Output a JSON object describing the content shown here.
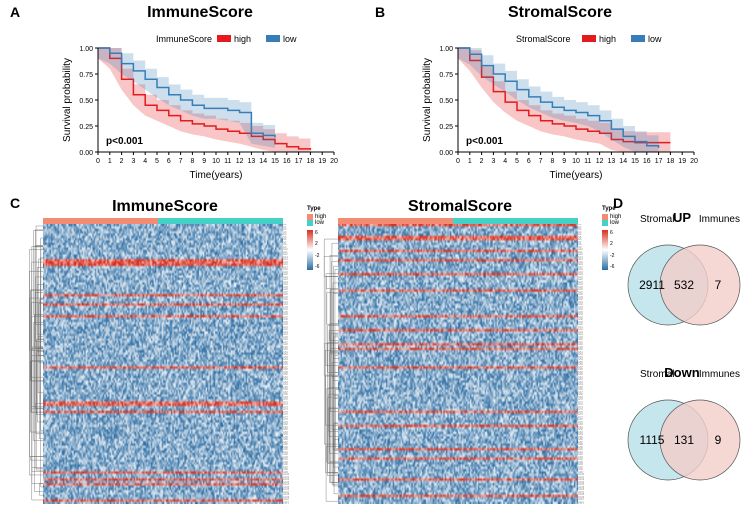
{
  "panelA": {
    "label": "A",
    "title": "ImmuneScore",
    "legend_name": "ImmuneScore",
    "groups": [
      "high",
      "low"
    ],
    "colors": {
      "high": "#e41a1c",
      "low": "#377eb8"
    },
    "fill_opacity": 0.25,
    "xlabel": "Time(years)",
    "ylabel": "Survival probability",
    "xlim": [
      0,
      20
    ],
    "xtick_step": 1,
    "ylim": [
      0,
      1
    ],
    "ytick_step": 0.25,
    "pvalue": "p<0.001",
    "curves": {
      "high": [
        [
          0,
          1.0
        ],
        [
          1,
          0.9
        ],
        [
          2,
          0.7
        ],
        [
          3,
          0.55
        ],
        [
          4,
          0.45
        ],
        [
          5,
          0.4
        ],
        [
          6,
          0.35
        ],
        [
          7,
          0.3
        ],
        [
          8,
          0.27
        ],
        [
          9,
          0.25
        ],
        [
          10,
          0.22
        ],
        [
          11,
          0.2
        ],
        [
          12,
          0.18
        ],
        [
          13,
          0.15
        ],
        [
          14,
          0.12
        ],
        [
          15,
          0.08
        ],
        [
          16,
          0.05
        ],
        [
          17,
          0.03
        ],
        [
          18,
          0.02
        ]
      ],
      "low": [
        [
          0,
          1.0
        ],
        [
          1,
          0.95
        ],
        [
          2,
          0.85
        ],
        [
          3,
          0.78
        ],
        [
          4,
          0.7
        ],
        [
          5,
          0.62
        ],
        [
          6,
          0.55
        ],
        [
          7,
          0.5
        ],
        [
          8,
          0.45
        ],
        [
          9,
          0.42
        ],
        [
          10,
          0.42
        ],
        [
          11,
          0.4
        ],
        [
          12,
          0.38
        ],
        [
          13,
          0.18
        ],
        [
          14,
          0.16
        ],
        [
          15,
          0.14
        ]
      ]
    },
    "ci_width": 0.1
  },
  "panelB": {
    "label": "B",
    "title": "StromalScore",
    "legend_name": "StromalScore",
    "groups": [
      "high",
      "low"
    ],
    "colors": {
      "high": "#e41a1c",
      "low": "#377eb8"
    },
    "fill_opacity": 0.25,
    "xlabel": "Time(years)",
    "ylabel": "Survival probability",
    "xlim": [
      0,
      20
    ],
    "xtick_step": 1,
    "ylim": [
      0,
      1
    ],
    "ytick_step": 0.25,
    "pvalue": "p<0.001",
    "curves": {
      "high": [
        [
          0,
          1.0
        ],
        [
          1,
          0.88
        ],
        [
          2,
          0.72
        ],
        [
          3,
          0.58
        ],
        [
          4,
          0.48
        ],
        [
          5,
          0.4
        ],
        [
          6,
          0.35
        ],
        [
          7,
          0.3
        ],
        [
          8,
          0.27
        ],
        [
          9,
          0.25
        ],
        [
          10,
          0.22
        ],
        [
          11,
          0.2
        ],
        [
          12,
          0.18
        ],
        [
          13,
          0.12
        ],
        [
          14,
          0.1
        ],
        [
          15,
          0.09
        ],
        [
          16,
          0.09
        ],
        [
          17,
          0.09
        ],
        [
          18,
          0.09
        ]
      ],
      "low": [
        [
          0,
          1.0
        ],
        [
          1,
          0.94
        ],
        [
          2,
          0.83
        ],
        [
          3,
          0.75
        ],
        [
          4,
          0.68
        ],
        [
          5,
          0.6
        ],
        [
          6,
          0.53
        ],
        [
          7,
          0.48
        ],
        [
          8,
          0.43
        ],
        [
          9,
          0.4
        ],
        [
          10,
          0.38
        ],
        [
          11,
          0.35
        ],
        [
          12,
          0.3
        ],
        [
          13,
          0.22
        ],
        [
          14,
          0.15
        ],
        [
          15,
          0.1
        ],
        [
          16,
          0.06
        ],
        [
          17,
          0.04
        ]
      ]
    },
    "ci_width": 0.1
  },
  "panelC": {
    "label": "C",
    "heatmaps": [
      {
        "title": "ImmuneScore",
        "annot_colors": [
          "#f48c74",
          "#45d0c8"
        ],
        "split": 0.48
      },
      {
        "title": "StromalScore",
        "annot_colors": [
          "#f48c74",
          "#45d0c8"
        ],
        "split": 0.48
      }
    ],
    "colorscale": {
      "low": "#2b6ca3",
      "mid": "#ffffff",
      "high": "#d7301f"
    },
    "rows": 120,
    "cols": 180,
    "legend_ticks": [
      "6",
      "4",
      "2",
      "0",
      "-2",
      "-4",
      "-6"
    ],
    "legend_type_label": "Type",
    "legend_types": [
      "high",
      "low"
    ]
  },
  "panelD": {
    "label": "D",
    "venns": [
      {
        "title": "UP",
        "left_label": "Stromal",
        "right_label": "Immunes",
        "left_only": 2911,
        "overlap": 532,
        "right_only": 7,
        "left_color": "#bfe3ea",
        "right_color": "#f2cdc9"
      },
      {
        "title": "Down",
        "left_label": "Stromal",
        "right_label": "Immunes",
        "left_only": 1115,
        "overlap": 131,
        "right_only": 9,
        "left_color": "#bfe3ea",
        "right_color": "#f2cdc9"
      }
    ]
  }
}
